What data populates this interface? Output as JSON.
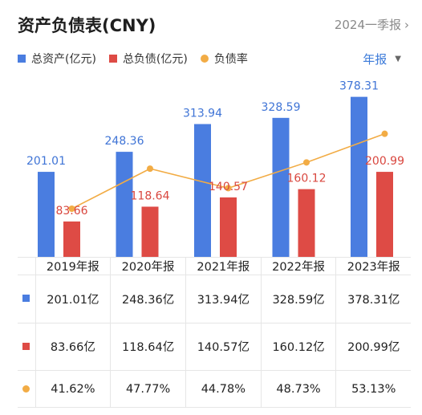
{
  "header": {
    "title": "资产负债表(CNY)",
    "period": "2024一季报",
    "period_chevron": "›"
  },
  "legend": [
    {
      "label": "总资产(亿元)",
      "color": "#4a7de0"
    },
    {
      "label": "总负债(亿元)",
      "color": "#de4b45"
    },
    {
      "label": "负债率",
      "color": "#f2ac45"
    }
  ],
  "frequency": {
    "label": "年报",
    "caret": "▼"
  },
  "chart_data": {
    "type": "bar",
    "categories": [
      "2019年报",
      "2020年报",
      "2021年报",
      "2022年报",
      "2023年报"
    ],
    "series": [
      {
        "name": "总资产(亿元)",
        "type": "bar",
        "color": "#4a7de0",
        "values": [
          201.01,
          248.36,
          313.94,
          328.59,
          378.31
        ]
      },
      {
        "name": "总负债(亿元)",
        "type": "bar",
        "color": "#de4b45",
        "values": [
          83.66,
          118.64,
          140.57,
          160.12,
          200.99
        ]
      },
      {
        "name": "负债率",
        "type": "line",
        "color": "#f2ac45",
        "values": [
          41.62,
          47.77,
          44.78,
          48.73,
          53.13
        ],
        "unit": "%"
      }
    ],
    "data_labels": {
      "assets": [
        "201.01",
        "248.36",
        "313.94",
        "328.59",
        "378.31"
      ],
      "liabilities": [
        "83.66",
        "118.64",
        "140.57",
        "160.12",
        "200.99"
      ]
    },
    "legend_position": "top-left",
    "grid": false
  },
  "table": {
    "headers": [
      "2019年报",
      "2020年报",
      "2021年报",
      "2022年报",
      "2023年报"
    ],
    "rows": [
      {
        "marker": "square",
        "color": "#4a7de0",
        "cells": [
          "201.01亿",
          "248.36亿",
          "313.94亿",
          "328.59亿",
          "378.31亿"
        ]
      },
      {
        "marker": "square",
        "color": "#de4b45",
        "cells": [
          "83.66亿",
          "118.64亿",
          "140.57亿",
          "160.12亿",
          "200.99亿"
        ]
      },
      {
        "marker": "dot",
        "color": "#f2ac45",
        "cells": [
          "41.62%",
          "47.77%",
          "44.78%",
          "48.73%",
          "53.13%"
        ]
      }
    ]
  }
}
